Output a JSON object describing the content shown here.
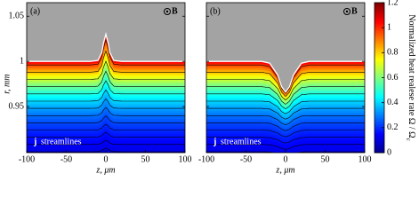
{
  "chart_data": [
    {
      "type": "heatmap",
      "label": "(a)",
      "field_symbol": "B",
      "current_symbol": "j",
      "streamlines_label": "streamlines",
      "xlabel": "z, μm",
      "ylabel": "r, mm",
      "xlim": [
        -100,
        100
      ],
      "ylim": [
        0.899,
        1.065
      ],
      "xticks": [
        -100,
        -50,
        0,
        50,
        100
      ],
      "yticks": [
        0.95,
        1,
        1.05
      ],
      "show_ytick_labels": true,
      "surface": {
        "x": [
          -100,
          -20,
          -10,
          -5,
          -3,
          0,
          3,
          5,
          10,
          20,
          100
        ],
        "y": [
          1,
          1,
          1.001,
          1.01,
          1.02,
          1.03,
          1.02,
          1.01,
          1.001,
          1,
          1
        ]
      }
    },
    {
      "type": "heatmap",
      "label": "(b)",
      "field_symbol": "B",
      "current_symbol": "j",
      "streamlines_label": "streamlines",
      "xlabel": "z, μm",
      "xlim": [
        -100,
        100
      ],
      "ylim": [
        0.899,
        1.065
      ],
      "xticks": [
        -100,
        -50,
        0,
        50,
        100
      ],
      "yticks": [
        0.95,
        1,
        1.05
      ],
      "show_ytick_labels": false,
      "surface": {
        "x": [
          -100,
          -30,
          -20,
          -10,
          -5,
          0,
          5,
          10,
          20,
          30,
          100
        ],
        "y": [
          1,
          1,
          0.998,
          0.985,
          0.972,
          0.966,
          0.972,
          0.985,
          0.998,
          1,
          1
        ]
      }
    },
    {
      "type": "colorbar",
      "label": "Normalized heat realese rate Ω / Ω",
      "label_subscript": "c",
      "lim": [
        0,
        1.2
      ],
      "ticks": [
        0,
        0.2,
        0.4,
        0.6,
        0.8,
        1,
        1.2
      ],
      "colormap": [
        "#00008f",
        "#0000ff",
        "#0080ff",
        "#00ffff",
        "#80ff80",
        "#ffff00",
        "#ff8000",
        "#ff0000",
        "#800000"
      ]
    }
  ]
}
